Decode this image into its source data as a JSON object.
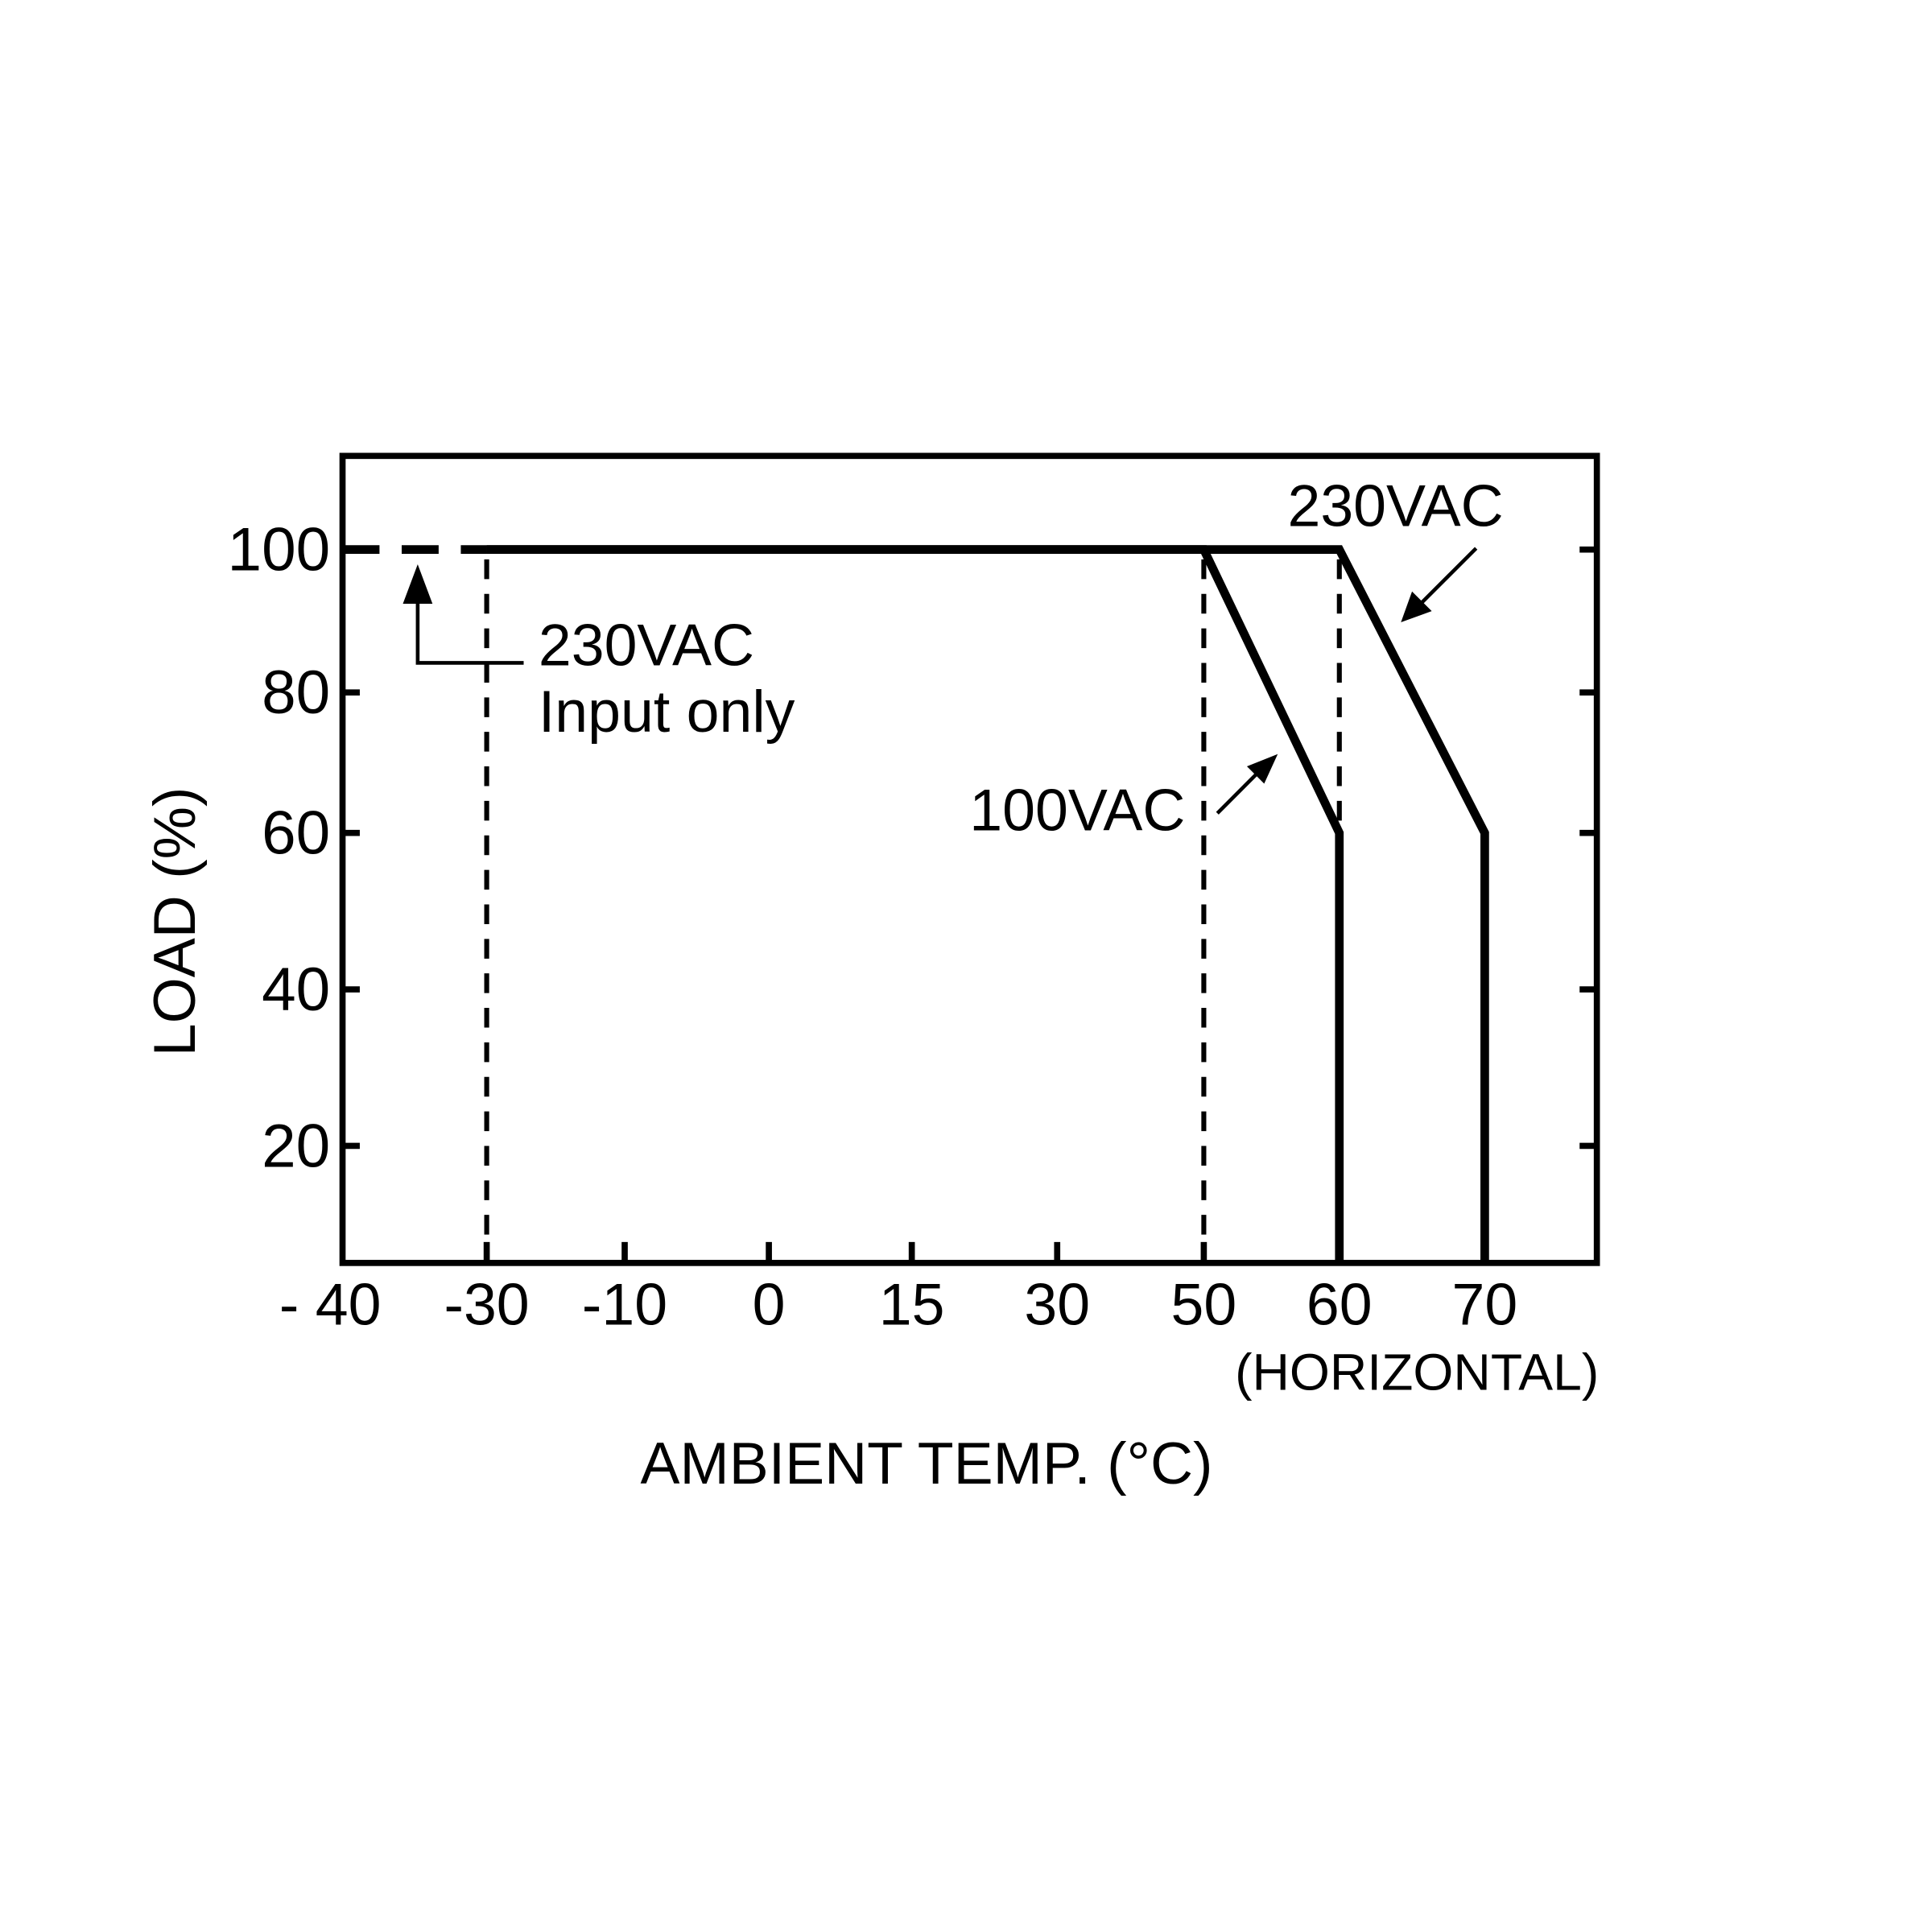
{
  "chart_data": {
    "type": "line",
    "title": "",
    "xlabel": "AMBIENT TEMP. (°C)",
    "xlabel_note": "(HORIZONTAL)",
    "ylabel": "LOAD (%)",
    "x_ticks": [
      "- 40",
      "-30",
      "-10",
      "0",
      "15",
      "30",
      "50",
      "60",
      "70"
    ],
    "x_tick_values": [
      -40,
      -30,
      -10,
      0,
      15,
      30,
      50,
      60,
      70
    ],
    "y_ticks": [
      "100",
      "80",
      "60",
      "40",
      "20"
    ],
    "y_tick_values": [
      100,
      80,
      60,
      40,
      20
    ],
    "xlim": [
      -40,
      78
    ],
    "ylim": [
      5,
      113
    ],
    "grid": false,
    "series": [
      {
        "name": "100VAC",
        "style": "solid",
        "points": [
          [
            -30,
            100
          ],
          [
            50,
            100
          ],
          [
            60,
            60
          ],
          [
            60,
            5
          ]
        ]
      },
      {
        "name": "230VAC",
        "style": "solid",
        "points": [
          [
            -30,
            100
          ],
          [
            60,
            100
          ],
          [
            70,
            60
          ],
          [
            70,
            5
          ]
        ]
      },
      {
        "name": "230VAC Input only",
        "style": "dashed",
        "points": [
          [
            -40,
            100
          ],
          [
            -30,
            100
          ]
        ]
      }
    ],
    "reference_lines": [
      {
        "x": -30,
        "style": "dashed"
      },
      {
        "x": 50,
        "style": "dashed"
      },
      {
        "x": 60,
        "style": "dashed"
      }
    ],
    "annotations": {
      "input_only_line1": "230VAC",
      "input_only_line2": "Input only",
      "label_100vac": "100VAC",
      "label_230vac": "230VAC"
    },
    "color": "#000000"
  }
}
